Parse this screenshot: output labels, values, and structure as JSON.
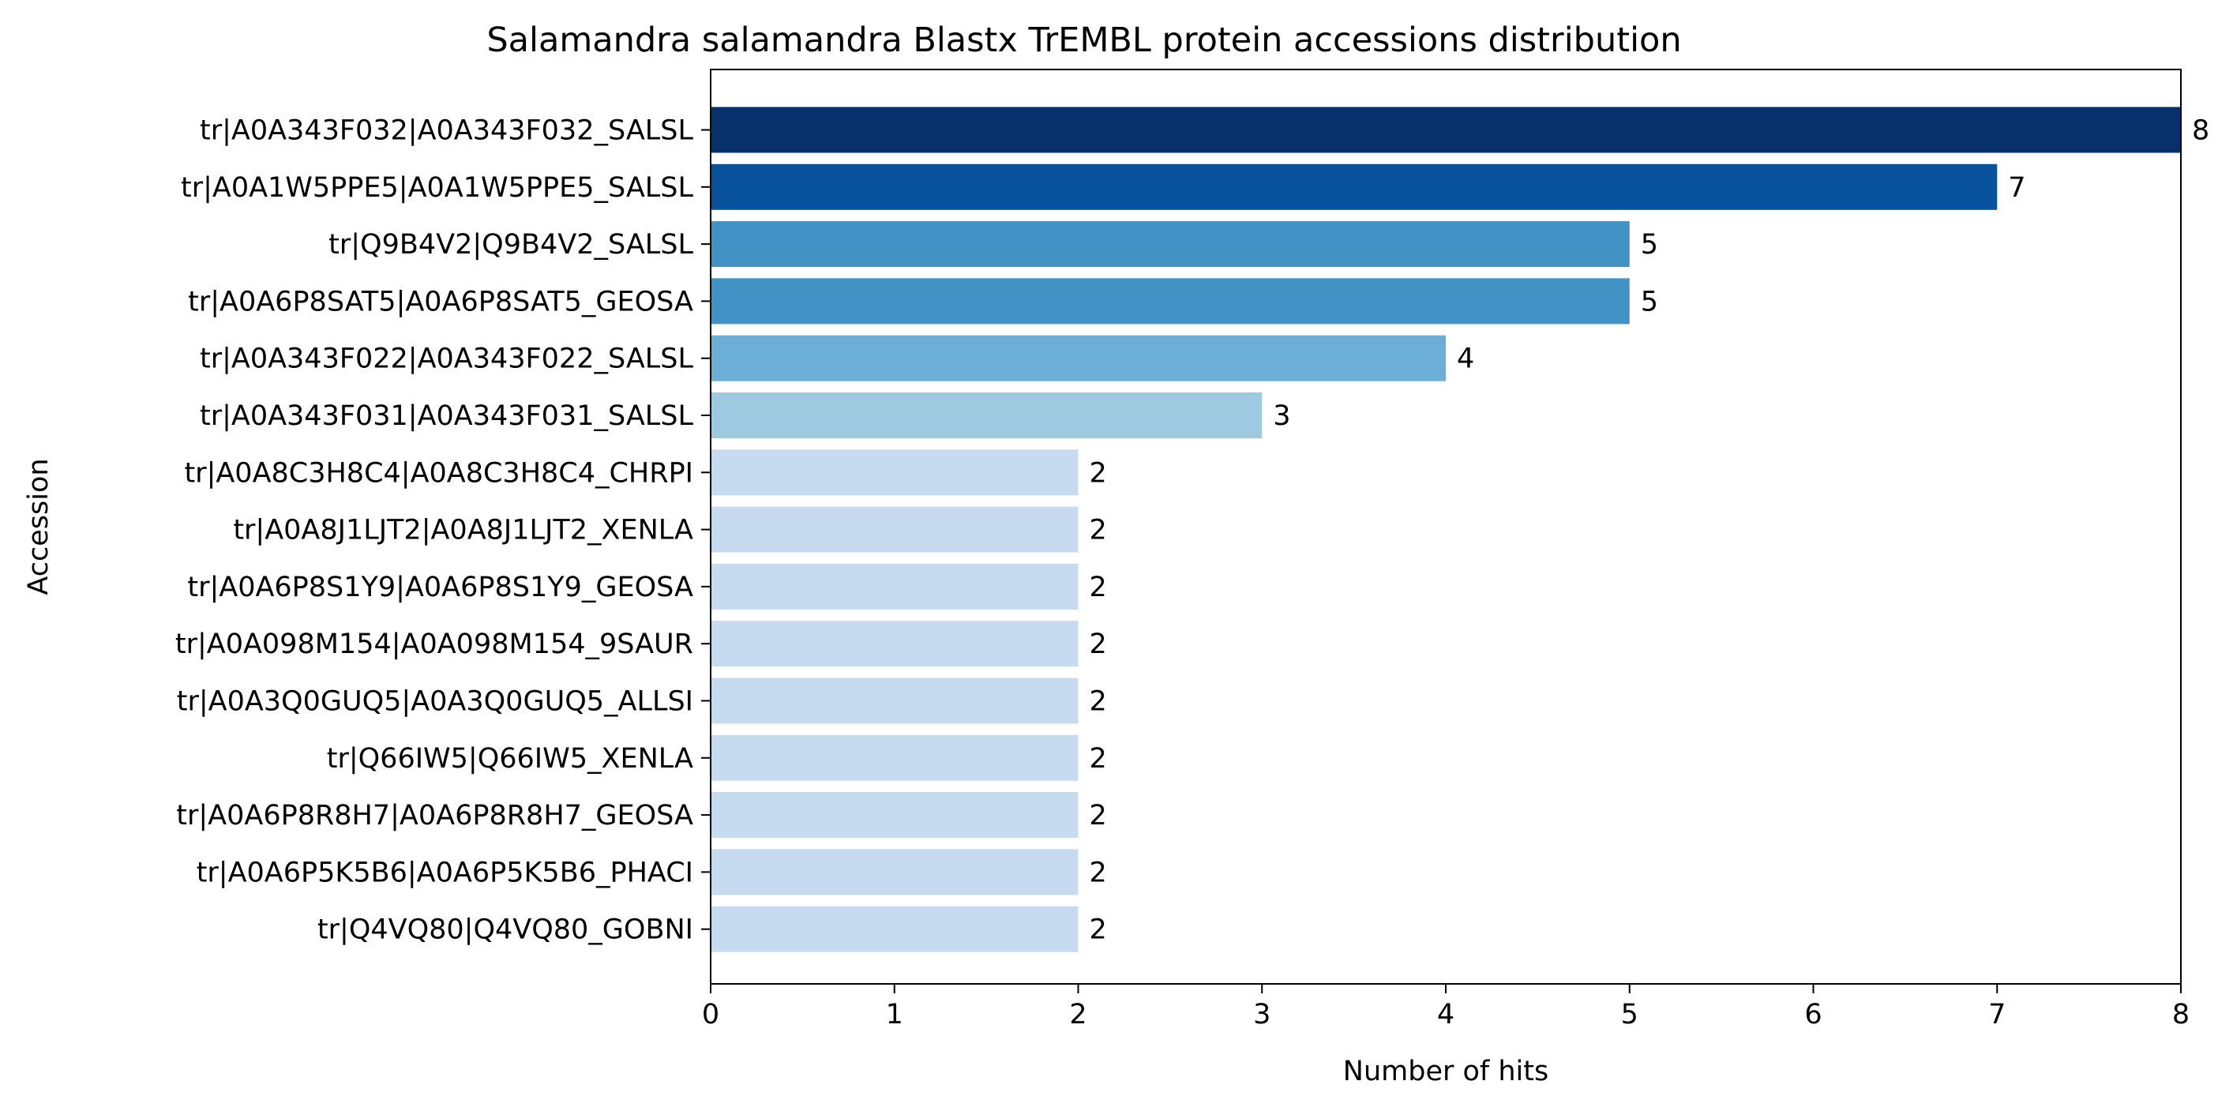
{
  "chart_data": {
    "type": "bar",
    "orientation": "horizontal",
    "title": "Salamandra salamandra Blastx TrEMBL protein accessions distribution",
    "xlabel": "Number of hits",
    "ylabel": "Accession",
    "xlim": [
      0,
      8
    ],
    "xticks": [
      0,
      1,
      2,
      3,
      4,
      5,
      6,
      7,
      8
    ],
    "grid": false,
    "categories": [
      "tr|A0A343F032|A0A343F032_SALSL",
      "tr|A0A1W5PPE5|A0A1W5PPE5_SALSL",
      "tr|Q9B4V2|Q9B4V2_SALSL",
      "tr|A0A6P8SAT5|A0A6P8SAT5_GEOSA",
      "tr|A0A343F022|A0A343F022_SALSL",
      "tr|A0A343F031|A0A343F031_SALSL",
      "tr|A0A8C3H8C4|A0A8C3H8C4_CHRPI",
      "tr|A0A8J1LJT2|A0A8J1LJT2_XENLA",
      "tr|A0A6P8S1Y9|A0A6P8S1Y9_GEOSA",
      "tr|A0A098M154|A0A098M154_9SAUR",
      "tr|A0A3Q0GUQ5|A0A3Q0GUQ5_ALLSI",
      "tr|Q66IW5|Q66IW5_XENLA",
      "tr|A0A6P8R8H7|A0A6P8R8H7_GEOSA",
      "tr|A0A6P5K5B6|A0A6P5K5B6_PHACI",
      "tr|Q4VQ80|Q4VQ80_GOBNI"
    ],
    "values": [
      8,
      7,
      5,
      5,
      4,
      3,
      2,
      2,
      2,
      2,
      2,
      2,
      2,
      2,
      2
    ],
    "colors": {
      "8": "#08306b",
      "7": "#08519c",
      "5": "#4292c6",
      "4": "#6baed6",
      "3": "#9ecae1",
      "2": "#c6dbef"
    }
  }
}
